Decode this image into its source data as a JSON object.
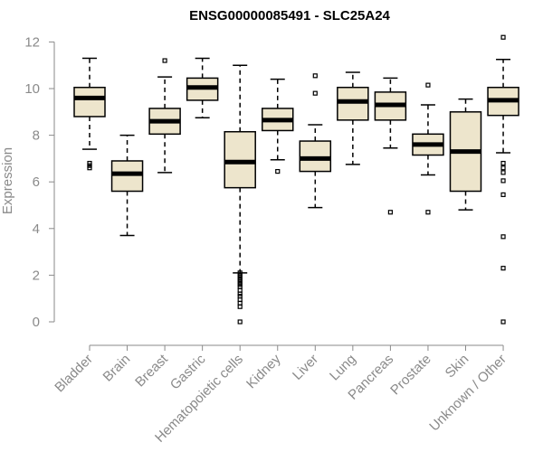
{
  "chart_data": {
    "type": "boxplot",
    "title": "ENSG00000085491 - SLC25A24",
    "xlabel": "",
    "ylabel": "Expression",
    "ylim": [
      0,
      12.4
    ],
    "yticks": [
      0,
      2,
      4,
      6,
      8,
      10,
      12
    ],
    "grid": false,
    "box_color": "#ede5cc",
    "categories": [
      "Bladder",
      "Brain",
      "Breast",
      "Gastric",
      "Hematopoietic cells",
      "Kidney",
      "Liver",
      "Lung",
      "Pancreas",
      "Prostate",
      "Skin",
      "Unknown / Other"
    ],
    "boxes": [
      {
        "name": "Bladder",
        "whislo": 7.4,
        "q1": 8.8,
        "med": 9.6,
        "q3": 10.05,
        "whishi": 11.3,
        "outliers": [
          6.6,
          6.7,
          6.8
        ]
      },
      {
        "name": "Brain",
        "whislo": 3.7,
        "q1": 5.6,
        "med": 6.35,
        "q3": 6.9,
        "whishi": 8.0,
        "outliers": []
      },
      {
        "name": "Breast",
        "whislo": 6.4,
        "q1": 8.05,
        "med": 8.6,
        "q3": 9.15,
        "whishi": 10.5,
        "outliers": [
          11.2
        ]
      },
      {
        "name": "Gastric",
        "whislo": 8.75,
        "q1": 9.5,
        "med": 10.05,
        "q3": 10.45,
        "whishi": 11.3,
        "outliers": []
      },
      {
        "name": "Hematopoietic cells",
        "whislo": 2.1,
        "q1": 5.75,
        "med": 6.85,
        "q3": 8.15,
        "whishi": 11.0,
        "outliers": [
          0.0,
          0.65,
          0.8,
          0.95,
          1.1,
          1.2,
          1.35,
          1.5,
          1.6,
          1.7,
          1.8,
          1.9,
          2.0,
          2.1
        ]
      },
      {
        "name": "Kidney",
        "whislo": 6.95,
        "q1": 8.2,
        "med": 8.65,
        "q3": 9.15,
        "whishi": 10.4,
        "outliers": [
          6.45
        ]
      },
      {
        "name": "Liver",
        "whislo": 4.9,
        "q1": 6.45,
        "med": 7.0,
        "q3": 7.75,
        "whishi": 8.45,
        "outliers": [
          9.8,
          10.55
        ]
      },
      {
        "name": "Lung",
        "whislo": 6.75,
        "q1": 8.65,
        "med": 9.45,
        "q3": 10.05,
        "whishi": 10.7,
        "outliers": []
      },
      {
        "name": "Pancreas",
        "whislo": 7.45,
        "q1": 8.65,
        "med": 9.3,
        "q3": 9.85,
        "whishi": 10.45,
        "outliers": [
          4.7
        ]
      },
      {
        "name": "Prostate",
        "whislo": 6.3,
        "q1": 7.15,
        "med": 7.6,
        "q3": 8.05,
        "whishi": 9.3,
        "outliers": [
          4.7,
          10.15
        ]
      },
      {
        "name": "Skin",
        "whislo": 4.8,
        "q1": 5.6,
        "med": 7.3,
        "q3": 9.0,
        "whishi": 9.55,
        "outliers": []
      },
      {
        "name": "Unknown / Other",
        "whislo": 7.25,
        "q1": 8.85,
        "med": 9.5,
        "q3": 10.05,
        "whishi": 11.25,
        "outliers": [
          0.0,
          2.3,
          3.65,
          5.45,
          6.05,
          6.4,
          6.6,
          6.8,
          12.2
        ]
      }
    ]
  }
}
